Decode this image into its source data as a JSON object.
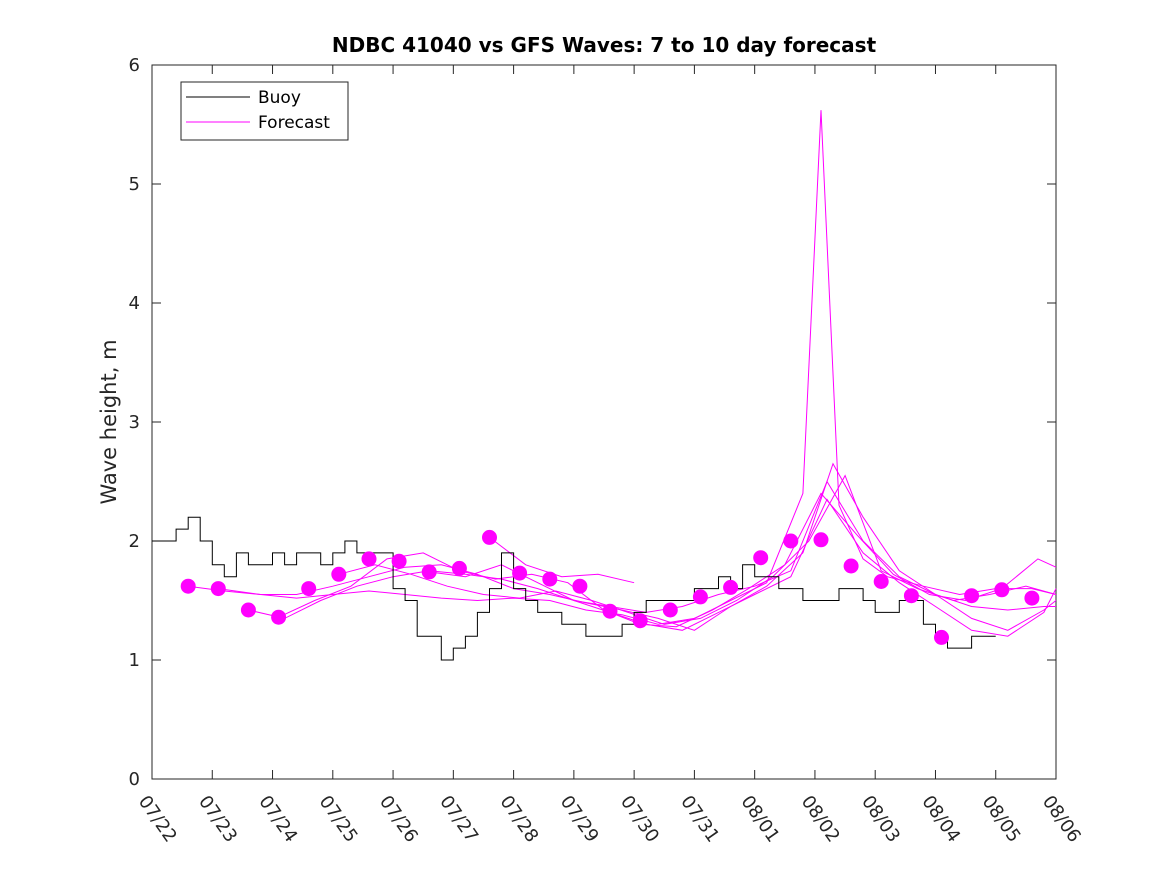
{
  "chart_data": {
    "type": "line",
    "title": "NDBC 41040 vs GFS Waves: 7 to 10 day forecast",
    "xlabel": "",
    "ylabel": "Wave height, m",
    "xlim": [
      "07/22",
      "08/06"
    ],
    "ylim": [
      0,
      6
    ],
    "yticks": [
      0,
      1,
      2,
      3,
      4,
      5,
      6
    ],
    "xtick_labels": [
      "07/22",
      "07/23",
      "07/24",
      "07/25",
      "07/26",
      "07/27",
      "07/28",
      "07/29",
      "07/30",
      "07/31",
      "08/01",
      "08/02",
      "08/03",
      "08/04",
      "08/05",
      "08/06"
    ],
    "x_unit": "days since 07/22 00:00",
    "grid": false,
    "legend": {
      "location": "top-left",
      "entries": [
        "Buoy",
        "Forecast"
      ]
    },
    "colors": {
      "buoy": "#000000",
      "forecast": "#ff00ff"
    },
    "series": [
      {
        "name": "Buoy",
        "x": [
          0.0,
          0.2,
          0.4,
          0.6,
          0.8,
          1.0,
          1.2,
          1.4,
          1.6,
          1.8,
          2.0,
          2.2,
          2.4,
          2.6,
          2.8,
          3.0,
          3.2,
          3.4,
          3.6,
          3.8,
          4.0,
          4.2,
          4.4,
          4.6,
          4.8,
          5.0,
          5.2,
          5.4,
          5.6,
          5.8,
          6.0,
          6.2,
          6.4,
          6.6,
          6.8,
          7.0,
          7.2,
          7.4,
          7.6,
          7.8,
          8.0,
          8.2,
          8.4,
          8.6,
          8.8,
          9.0,
          9.2,
          9.4,
          9.6,
          9.8,
          10.0,
          10.2,
          10.4,
          10.6,
          10.8,
          11.0,
          11.2,
          11.4,
          11.6,
          11.8,
          12.0,
          12.2,
          12.4,
          12.6,
          12.8,
          13.0,
          13.2,
          13.4,
          13.6,
          13.8,
          14.0
        ],
        "y": [
          2.0,
          2.0,
          2.1,
          2.2,
          2.0,
          1.8,
          1.7,
          1.9,
          1.8,
          1.8,
          1.9,
          1.8,
          1.9,
          1.9,
          1.8,
          1.9,
          2.0,
          1.9,
          1.9,
          1.9,
          1.6,
          1.5,
          1.2,
          1.2,
          1.0,
          1.1,
          1.2,
          1.4,
          1.6,
          1.9,
          1.6,
          1.5,
          1.4,
          1.4,
          1.3,
          1.3,
          1.2,
          1.2,
          1.2,
          1.3,
          1.4,
          1.5,
          1.5,
          1.5,
          1.5,
          1.6,
          1.6,
          1.7,
          1.6,
          1.8,
          1.7,
          1.7,
          1.6,
          1.6,
          1.5,
          1.5,
          1.5,
          1.6,
          1.6,
          1.5,
          1.4,
          1.4,
          1.5,
          1.5,
          1.3,
          1.2,
          1.1,
          1.1,
          1.2,
          1.2,
          1.2
        ]
      },
      {
        "name": "Forecast",
        "x": [
          0.6,
          1.1,
          1.6,
          2.1,
          2.6,
          3.1,
          3.6,
          4.1,
          4.6,
          5.1,
          5.6,
          6.1,
          6.6,
          7.1,
          7.6,
          8.1,
          8.6,
          9.1,
          9.6,
          10.1,
          10.6,
          11.1,
          11.6,
          12.1,
          12.6,
          13.1,
          13.6,
          14.1,
          14.6
        ],
        "y": [
          1.62,
          1.6,
          1.42,
          1.36,
          1.6,
          1.72,
          1.85,
          1.83,
          1.74,
          1.77,
          2.03,
          1.73,
          1.68,
          1.62,
          1.41,
          1.33,
          1.42,
          1.53,
          1.61,
          1.86,
          2.0,
          2.01,
          1.79,
          1.66,
          1.54,
          1.19,
          1.54,
          1.59,
          1.52
        ]
      }
    ],
    "forecast_traces": [
      {
        "x": [
          0.6,
          1.2,
          1.8,
          2.4,
          3.0,
          3.6,
          4.2,
          4.8,
          5.4,
          6.0,
          6.6,
          7.2,
          7.8,
          8.4,
          9.0,
          9.6,
          10.2,
          10.8,
          11.1,
          11.4,
          11.8,
          12.2,
          12.8,
          13.4,
          14.0,
          14.6,
          15.0
        ],
        "y": [
          1.62,
          1.58,
          1.55,
          1.52,
          1.55,
          1.58,
          1.55,
          1.52,
          1.5,
          1.52,
          1.5,
          1.42,
          1.38,
          1.3,
          1.35,
          1.5,
          1.65,
          2.4,
          5.62,
          2.3,
          1.85,
          1.7,
          1.62,
          1.55,
          1.6,
          1.6,
          1.55
        ]
      },
      {
        "x": [
          1.1,
          1.8,
          2.4,
          3.0,
          3.6,
          4.2,
          4.8,
          5.4,
          6.0,
          6.6,
          7.2,
          7.8,
          8.4,
          9.0,
          9.6,
          10.2,
          10.8,
          11.3,
          11.8,
          12.4,
          13.0,
          13.6,
          14.2,
          14.8,
          15.0
        ],
        "y": [
          1.6,
          1.55,
          1.55,
          1.62,
          1.7,
          1.78,
          1.8,
          1.72,
          1.6,
          1.55,
          1.48,
          1.42,
          1.35,
          1.25,
          1.45,
          1.62,
          1.9,
          2.65,
          2.2,
          1.75,
          1.55,
          1.35,
          1.25,
          1.42,
          1.5
        ]
      },
      {
        "x": [
          1.6,
          2.2,
          2.8,
          3.4,
          4.0,
          4.6,
          5.2,
          5.8,
          6.4,
          7.0,
          7.6,
          8.2,
          8.8,
          9.4,
          10.0,
          10.6,
          11.2,
          11.8,
          12.4,
          13.0,
          13.6,
          14.2,
          14.8,
          15.0
        ],
        "y": [
          1.42,
          1.35,
          1.5,
          1.62,
          1.7,
          1.75,
          1.72,
          1.68,
          1.6,
          1.5,
          1.4,
          1.3,
          1.25,
          1.4,
          1.55,
          1.7,
          2.35,
          1.9,
          1.65,
          1.45,
          1.25,
          1.2,
          1.4,
          1.6
        ]
      },
      {
        "x": [
          2.1,
          2.7,
          3.3,
          3.9,
          4.5,
          5.1,
          5.7,
          6.3,
          6.9,
          7.5,
          8.1,
          8.7,
          9.3,
          9.9,
          10.5,
          11.1,
          11.7,
          12.3,
          12.9,
          13.5,
          14.1,
          14.7,
          15.0
        ],
        "y": [
          1.36,
          1.5,
          1.62,
          1.85,
          1.9,
          1.75,
          1.68,
          1.72,
          1.65,
          1.42,
          1.3,
          1.28,
          1.42,
          1.6,
          1.8,
          2.4,
          2.05,
          1.72,
          1.55,
          1.5,
          1.6,
          1.85,
          1.78
        ]
      },
      {
        "x": [
          3.1,
          3.7,
          4.3,
          4.9,
          5.5,
          6.1,
          6.7,
          7.3,
          7.9,
          8.5,
          9.1,
          9.7,
          10.3,
          10.9,
          11.5,
          12.1,
          12.7,
          13.3,
          13.9,
          14.5,
          15.0
        ],
        "y": [
          1.72,
          1.8,
          1.72,
          1.62,
          1.55,
          1.52,
          1.58,
          1.5,
          1.4,
          1.3,
          1.35,
          1.5,
          1.7,
          2.0,
          2.55,
          1.75,
          1.6,
          1.5,
          1.55,
          1.62,
          1.55
        ]
      },
      {
        "x": [
          4.6,
          5.2,
          5.8,
          6.4,
          7.0,
          7.6,
          8.2,
          8.8,
          9.4,
          10.0,
          10.6,
          11.2,
          11.8,
          12.4,
          13.0,
          13.6,
          14.2,
          14.8,
          15.0
        ],
        "y": [
          1.74,
          1.7,
          1.8,
          1.65,
          1.5,
          1.45,
          1.4,
          1.45,
          1.55,
          1.62,
          1.75,
          2.5,
          2.0,
          1.7,
          1.55,
          1.45,
          1.42,
          1.45,
          1.45
        ]
      },
      {
        "x": [
          5.6,
          6.2,
          6.8,
          7.4,
          8.0
        ],
        "y": [
          2.03,
          1.8,
          1.7,
          1.72,
          1.65
        ]
      }
    ]
  }
}
